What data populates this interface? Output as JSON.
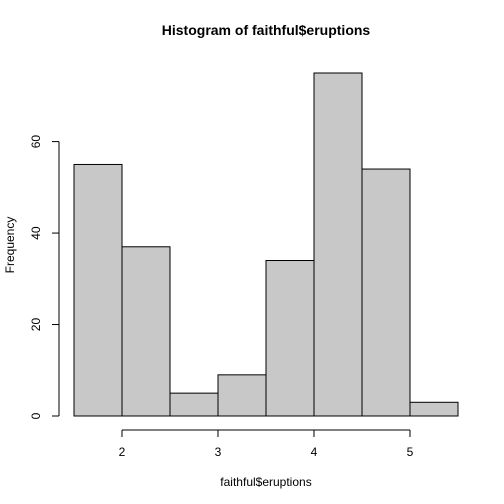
{
  "chart_data": {
    "type": "bar",
    "title": "Histogram of faithful$eruptions",
    "xlabel": "faithful$eruptions",
    "ylabel": "Frequency",
    "bins": [
      {
        "start": 1.5,
        "end": 2.0,
        "count": 55
      },
      {
        "start": 2.0,
        "end": 2.5,
        "count": 37
      },
      {
        "start": 2.5,
        "end": 3.0,
        "count": 5
      },
      {
        "start": 3.0,
        "end": 3.5,
        "count": 9
      },
      {
        "start": 3.5,
        "end": 4.0,
        "count": 34
      },
      {
        "start": 4.0,
        "end": 4.5,
        "count": 75
      },
      {
        "start": 4.5,
        "end": 5.0,
        "count": 54
      },
      {
        "start": 5.0,
        "end": 5.5,
        "count": 3
      }
    ],
    "xlim": [
      1.5,
      5.5
    ],
    "ylim": [
      0,
      75
    ],
    "xticks": [
      2,
      3,
      4,
      5
    ],
    "yticks": [
      0,
      20,
      40,
      60
    ],
    "bar_color": "#c8c8c8",
    "grid": false
  }
}
